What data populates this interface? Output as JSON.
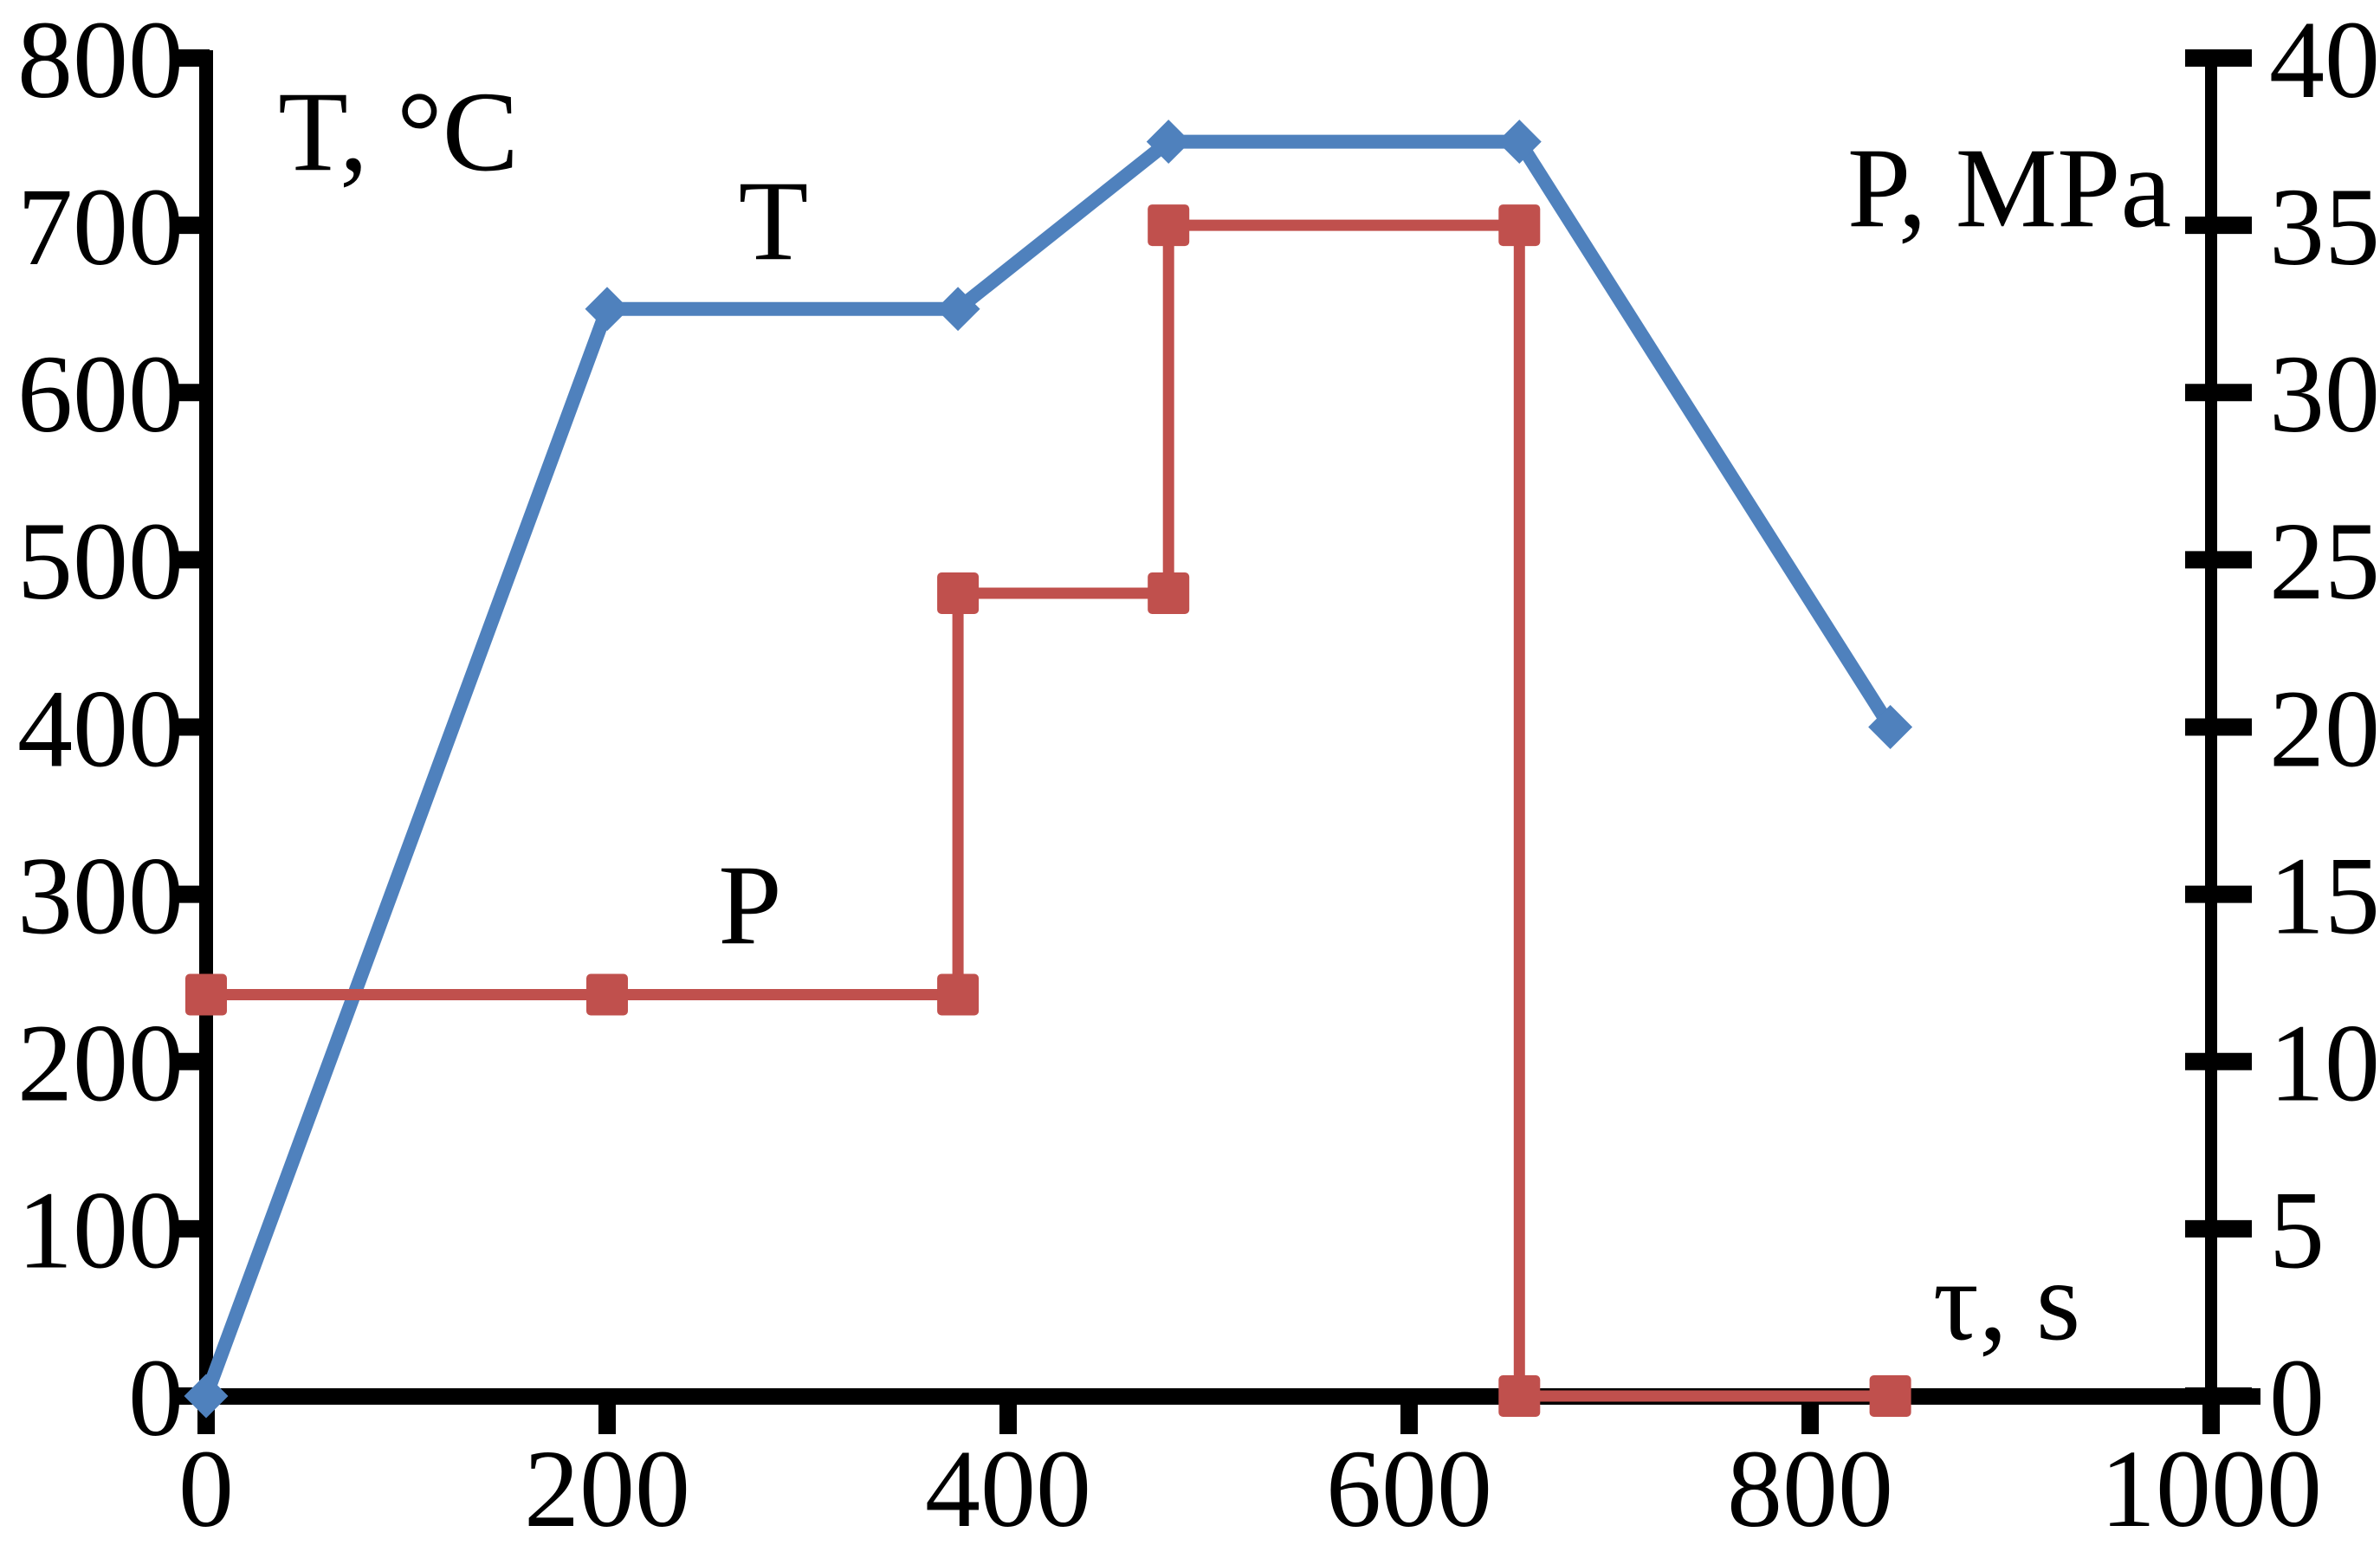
{
  "chart_data": {
    "type": "line",
    "title": "",
    "xlabel": "τ, s",
    "x_ticks": [
      0,
      200,
      400,
      600,
      800,
      1000
    ],
    "xlim": [
      0,
      1000
    ],
    "grid": false,
    "legend_position": "inline-labels",
    "left_axis": {
      "label": "T, °C",
      "ticks": [
        0,
        100,
        200,
        300,
        400,
        500,
        600,
        700,
        800
      ],
      "ylim": [
        0,
        800
      ]
    },
    "right_axis": {
      "label": "P, MPa",
      "ticks": [
        0,
        5,
        10,
        15,
        20,
        25,
        30,
        35,
        40
      ],
      "ylim": [
        0,
        40
      ]
    },
    "series": [
      {
        "name": "T",
        "axis": "left",
        "color": "#4f81bd",
        "marker": "diamond",
        "points": [
          [
            0,
            0
          ],
          [
            200,
            650
          ],
          [
            375,
            650
          ],
          [
            480,
            750
          ],
          [
            655,
            750
          ],
          [
            840,
            400
          ]
        ]
      },
      {
        "name": "P",
        "axis": "right",
        "color": "#c0504d",
        "marker": "square",
        "points": [
          [
            0,
            12
          ],
          [
            200,
            12
          ],
          [
            375,
            12
          ],
          [
            375,
            24
          ],
          [
            480,
            24
          ],
          [
            480,
            35
          ],
          [
            655,
            35
          ],
          [
            655,
            0
          ],
          [
            840,
            0
          ]
        ]
      }
    ]
  },
  "labels": {
    "t_axis": "T, °C",
    "p_axis": "P, MPa",
    "t_series": "T",
    "p_series": "P",
    "x_axis": "τ, s"
  },
  "colors": {
    "temperature_series": "#4f81bd",
    "pressure_series": "#c0504d",
    "axis": "#000000"
  }
}
